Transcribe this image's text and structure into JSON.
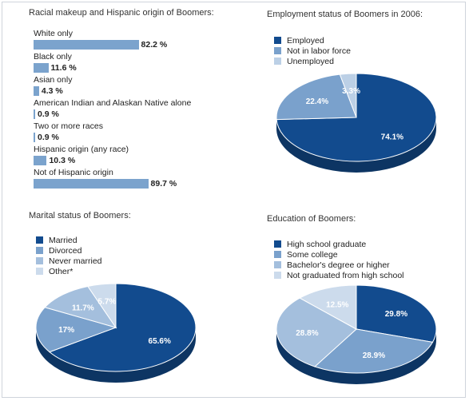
{
  "chart_data": [
    {
      "type": "bar",
      "title": "Racial makeup and Hispanic origin of Boomers:",
      "categories": [
        "White only",
        "Black only",
        "Asian only",
        "American Indian and Alaskan Native alone",
        "Two or more races",
        "Hispanic origin (any race)",
        "Not of Hispanic origin"
      ],
      "values": [
        82.2,
        11.6,
        4.3,
        0.9,
        0.9,
        10.3,
        89.7
      ],
      "value_labels": [
        "82.2 %",
        "11.6 %",
        "4.3 %",
        "0.9 %",
        "0.9 %",
        "10.3 %",
        "89.7 %"
      ],
      "orientation": "horizontal",
      "xlim": [
        0,
        100
      ],
      "color": "#7ba3cd"
    },
    {
      "type": "pie",
      "title": "Employment status of Boomers in 2006:",
      "categories": [
        "Employed",
        "Not in labor force",
        "Unemployed"
      ],
      "values": [
        74.1,
        22.4,
        3.3
      ],
      "value_labels": [
        "74.1%",
        "22.4%",
        "3.3%"
      ],
      "colors": [
        "#124b8e",
        "#7aa1cc",
        "#bcd0e6"
      ],
      "legend": "top-left"
    },
    {
      "type": "pie",
      "title": "Marital status of Boomers:",
      "categories": [
        "Married",
        "Divorced",
        "Never married",
        "Other*"
      ],
      "values": [
        65.6,
        17,
        11.7,
        5.7
      ],
      "value_labels": [
        "65.6%",
        "17%",
        "11.7%",
        "5.7%"
      ],
      "colors": [
        "#124b8e",
        "#7aa1cc",
        "#a4bfdd",
        "#ccdbec"
      ],
      "legend": "top-left"
    },
    {
      "type": "pie",
      "title": "Education of Boomers:",
      "categories": [
        "High school graduate",
        "Some college",
        "Bachelor's degree or higher",
        "Not graduated from high school"
      ],
      "values": [
        29.8,
        28.9,
        28.8,
        12.5
      ],
      "value_labels": [
        "29.8%",
        "28.9%",
        "28.8%",
        "12.5%"
      ],
      "colors": [
        "#124b8e",
        "#7aa1cc",
        "#a4bfdd",
        "#ccdbec"
      ],
      "legend": "top-left"
    }
  ]
}
